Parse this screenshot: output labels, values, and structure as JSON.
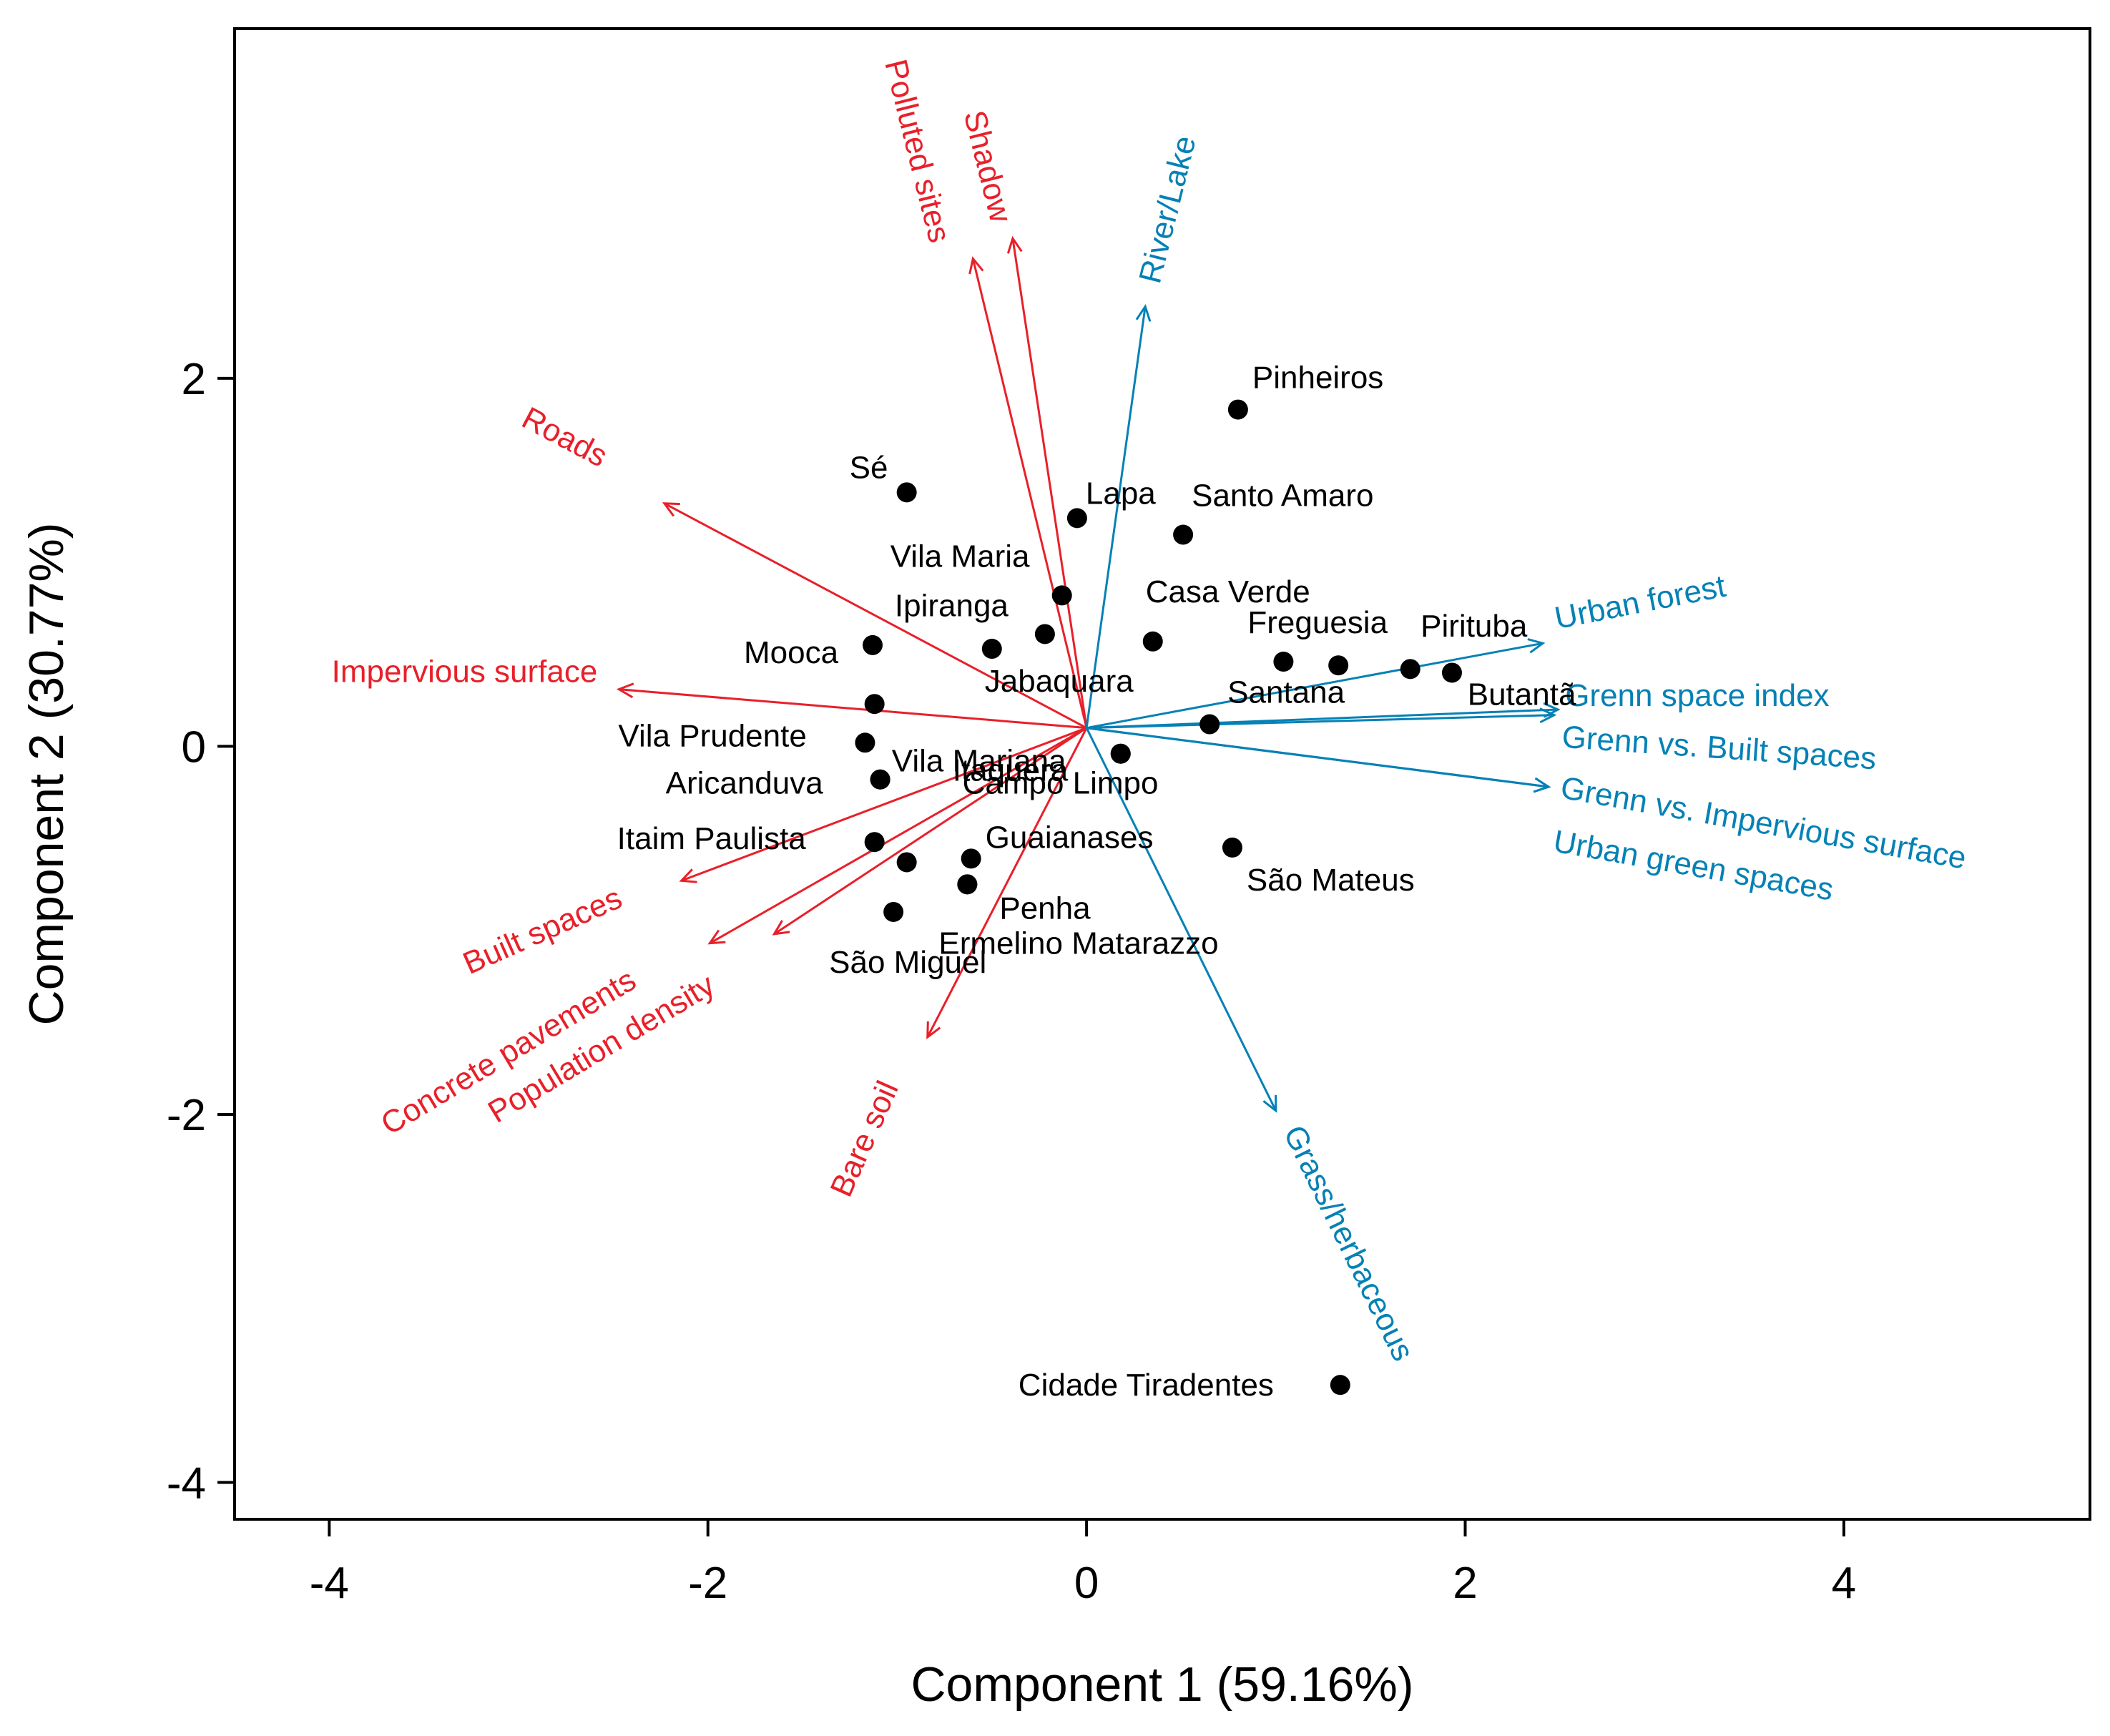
{
  "chart_data": {
    "type": "biplot",
    "xlabel": "Component 1 (59.16%)",
    "ylabel": "Component 2 (30.77%)",
    "xlim": [
      -4.5,
      5.3
    ],
    "ylim": [
      -4.2,
      3.9
    ],
    "xticks": [
      -4,
      -2,
      0,
      2,
      4
    ],
    "yticks": [
      -4,
      -2,
      0,
      2
    ],
    "origin": [
      0,
      0.1
    ],
    "colors": {
      "built": "#e8202a",
      "green": "#0581b5",
      "points": "#000000"
    },
    "points": [
      {
        "name": "Pinheiros",
        "x": 0.8,
        "y": 1.83
      },
      {
        "name": "Sé",
        "x": -0.95,
        "y": 1.38
      },
      {
        "name": "Lapa",
        "x": -0.05,
        "y": 1.24
      },
      {
        "name": "Santo Amaro",
        "x": 0.51,
        "y": 1.15
      },
      {
        "name": "Vila Maria",
        "x": -0.13,
        "y": 0.82
      },
      {
        "name": "Ipiranga",
        "x": -0.22,
        "y": 0.61
      },
      {
        "name": "Casa Verde",
        "x": 0.35,
        "y": 0.57
      },
      {
        "name": "Mooca",
        "x": -1.13,
        "y": 0.55
      },
      {
        "name": "Jabaquara",
        "x": -0.5,
        "y": 0.53
      },
      {
        "name": "Freguesia",
        "x": 1.04,
        "y": 0.46
      },
      {
        "name": "Pirituba",
        "x": 1.33,
        "y": 0.44
      },
      {
        "name": "Butantã",
        "x": 1.71,
        "y": 0.42
      },
      {
        "name": "",
        "x": 1.93,
        "y": 0.4
      },
      {
        "name": "",
        "x": -1.12,
        "y": 0.23
      },
      {
        "name": "Santana",
        "x": 0.65,
        "y": 0.12
      },
      {
        "name": "Vila Prudente",
        "x": -1.17,
        "y": 0.02
      },
      {
        "name": "Vila Mariana",
        "x": 0.18,
        "y": -0.04
      },
      {
        "name": "Itaquera",
        "x": 0.18,
        "y": -0.04
      },
      {
        "name": "Aricanduva",
        "x": -1.09,
        "y": -0.18
      },
      {
        "name": "Campo Limpo",
        "x": -1.09,
        "y": -0.18
      },
      {
        "name": "Itaim Paulista",
        "x": -1.12,
        "y": -0.52
      },
      {
        "name": "São Mateus",
        "x": 0.77,
        "y": -0.55
      },
      {
        "name": "Guaianases",
        "x": -0.61,
        "y": -0.61
      },
      {
        "name": "",
        "x": -0.95,
        "y": -0.63
      },
      {
        "name": "Penha",
        "x": -0.63,
        "y": -0.75
      },
      {
        "name": "Ermelino Matarazzo",
        "x": -0.63,
        "y": -0.75
      },
      {
        "name": "São Miguel",
        "x": -1.02,
        "y": -0.9
      },
      {
        "name": "Cidade Tiradentes",
        "x": 1.34,
        "y": -3.47
      }
    ],
    "vectors": [
      {
        "name": "Polluted sites",
        "group": "built",
        "x": -0.6,
        "y": 2.55
      },
      {
        "name": "Shadow",
        "group": "built",
        "x": -0.39,
        "y": 2.66
      },
      {
        "name": "Roads",
        "group": "built",
        "x": -2.23,
        "y": 1.22
      },
      {
        "name": "Impervious surface",
        "group": "built",
        "x": -2.47,
        "y": 0.21
      },
      {
        "name": "Built spaces",
        "group": "built",
        "x": -2.14,
        "y": -0.83
      },
      {
        "name": "Concrete pavements",
        "group": "built",
        "x": -1.99,
        "y": -1.17
      },
      {
        "name": "Population density",
        "group": "built",
        "x": -1.65,
        "y": -1.12
      },
      {
        "name": "Bare soil",
        "group": "built",
        "x": -0.84,
        "y": -1.68
      },
      {
        "name": "River/Lake",
        "group": "green",
        "x": 0.31,
        "y": 2.29
      },
      {
        "name": "Urban forest",
        "group": "green",
        "x": 2.41,
        "y": 0.46
      },
      {
        "name": "Grenn space index",
        "group": "green",
        "x": 2.49,
        "y": 0.1
      },
      {
        "name": "Grenn vs. Built spaces",
        "group": "green",
        "x": 2.47,
        "y": 0.07
      },
      {
        "name": "Grenn vs. Impervious surface",
        "group": "green",
        "x": 2.44,
        "y": -0.32
      },
      {
        "name": "Urban green spaces",
        "group": "green",
        "x": 2.44,
        "y": -0.32
      },
      {
        "name": "Grass/herbaceous",
        "group": "green",
        "x": 1.0,
        "y": -2.08
      }
    ]
  }
}
